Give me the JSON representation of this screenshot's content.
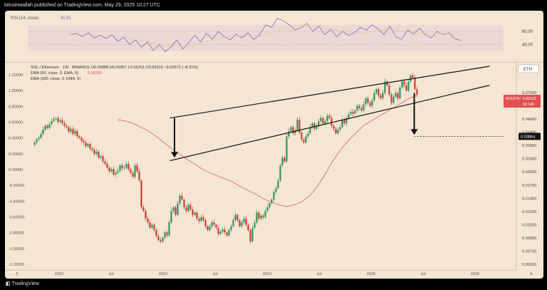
{
  "header": {
    "publisher": "bitcoinwallah published on TradingView.com, May 29, 2025 10:27 UTC"
  },
  "footer": {
    "brand": "TradingView",
    "brand_icon": "tradingview-logo-icon"
  },
  "colors": {
    "bg": "#f5e6d3",
    "up": "#2e8b57",
    "down": "#c0392b",
    "ema50": "#e05050",
    "rsi": "#7a6bc9",
    "rsi_ma": "#e8c56a"
  },
  "chart_data": [
    {
      "type": "line",
      "name_label": "RSI (14, close)",
      "value_label": "45.91",
      "ylim": [
        20,
        85
      ],
      "y_ticks": [
        "60.00",
        "40.00"
      ],
      "band": [
        30,
        70
      ],
      "series": [
        {
          "values": [
            55,
            57,
            52,
            58,
            50,
            54,
            49,
            55,
            45,
            51,
            40,
            47,
            36,
            44,
            31,
            40,
            29,
            37,
            47,
            33,
            43,
            54,
            44,
            57,
            48,
            60,
            52,
            47,
            56,
            50,
            58,
            48,
            55,
            70,
            66,
            80,
            76,
            70,
            62,
            66,
            72,
            60,
            68,
            55,
            63,
            52,
            60,
            54,
            58,
            66,
            62,
            70,
            64,
            55,
            68,
            52,
            48,
            62,
            56,
            65,
            55,
            50,
            60,
            55,
            58,
            49,
            46
          ]
        }
      ]
    },
    {
      "type": "candlestick",
      "legend": [
        {
          "text": "SOL / Ethereum · 1W · BINANCE  O0.06888  H0.06957  L0.06251  C0.06315  −0.00572 (−8.31%)"
        },
        {
          "text": "EMA (50, close, 0, EMA, 5)",
          "value": "0.06283"
        },
        {
          "text": "EMA (200, close, 0, EMA, 5)"
        }
      ],
      "y_ticks_left": [
        "1.20000",
        "1.00000",
        "0.80000",
        "0.60000",
        "0.40000",
        "0.20000",
        "0.00000",
        "-0.20000",
        "-0.40000",
        "-0.60000",
        "-0.80000",
        "-1.00000",
        "-1.20000"
      ],
      "y_ticks_right": [
        "0.07000",
        "0.05000",
        "0.04000",
        "0.03400",
        "0.02800",
        "0.02400",
        "0.02000",
        "0.01700",
        "0.01400",
        "0.01200",
        "0.01000",
        "0.00850",
        "0.00730",
        "0.00620"
      ],
      "x_ticks": [
        "2022",
        "Jul",
        "2023",
        "Jul",
        "2024",
        "Jul",
        "2025",
        "Jul",
        "2026"
      ],
      "x_axis_corners": [
        "Z",
        "A"
      ],
      "currency_badge": "ETH",
      "price_label": [
        "SOLETH",
        "0.06315",
        "3d 14h"
      ],
      "target_label": "0.03864",
      "close": [
        0.3,
        0.34,
        0.36,
        0.41,
        0.47,
        0.52,
        0.49,
        0.54,
        0.58,
        0.61,
        0.62,
        0.57,
        0.59,
        0.55,
        0.52,
        0.5,
        0.44,
        0.48,
        0.41,
        0.45,
        0.38,
        0.36,
        0.32,
        0.3,
        0.25,
        0.28,
        0.22,
        0.2,
        0.15,
        0.18,
        0.1,
        0.12,
        0.05,
        0.02,
        -0.03,
        -0.08,
        -0.05,
        -0.12,
        -0.1,
        -0.07,
        0.0,
        -0.04,
        -0.03,
        0.02,
        -0.05,
        -0.1,
        -0.15,
        0.0,
        -0.08,
        -0.2,
        -0.55,
        -0.6,
        -0.7,
        -0.75,
        -0.82,
        -0.78,
        -0.85,
        -0.93,
        -0.98,
        -1.0,
        -0.95,
        -0.88,
        -0.92,
        -0.75,
        -0.6,
        -0.55,
        -0.65,
        -0.5,
        -0.4,
        -0.45,
        -0.55,
        -0.6,
        -0.52,
        -0.58,
        -0.65,
        -0.62,
        -0.7,
        -0.73,
        -0.68,
        -0.72,
        -0.8,
        -0.85,
        -0.8,
        -0.75,
        -0.78,
        -0.82,
        -0.9,
        -0.87,
        -0.84,
        -0.88,
        -0.92,
        -0.85,
        -0.8,
        -0.72,
        -0.65,
        -0.72,
        -0.8,
        -0.75,
        -0.7,
        -0.78,
        -0.85,
        -1.0,
        -0.82,
        -0.75,
        -0.62,
        -0.7,
        -0.66,
        -0.68,
        -0.6,
        -0.55,
        -0.5,
        -0.45,
        -0.35,
        -0.3,
        -0.2,
        0.0,
        0.1,
        0.05,
        0.38,
        0.45,
        0.5,
        0.42,
        0.46,
        0.6,
        0.43,
        0.34,
        0.3,
        0.38,
        0.42,
        0.5,
        0.55,
        0.48,
        0.52,
        0.58,
        0.62,
        0.55,
        0.58,
        0.65,
        0.62,
        0.52,
        0.48,
        0.42,
        0.47,
        0.5,
        0.6,
        0.55,
        0.62,
        0.67,
        0.7,
        0.68,
        0.72,
        0.78,
        0.75,
        0.72,
        0.8,
        0.88,
        0.82,
        0.78,
        0.85,
        0.95,
        1.0,
        0.92,
        0.88,
        0.95,
        1.1,
        1.05,
        0.93,
        0.82,
        0.9,
        0.95,
        0.88,
        1.02,
        1.1,
        1.05,
        0.98,
        1.1,
        1.18,
        1.15,
        1.0,
        0.93
      ],
      "ema50": [
        0.6,
        0.58,
        0.55,
        0.5,
        0.45,
        0.38,
        0.3,
        0.22,
        0.15,
        0.08,
        0.02,
        -0.05,
        -0.1,
        -0.14,
        -0.18,
        -0.22,
        -0.28,
        -0.33,
        -0.38,
        -0.44,
        -0.48,
        -0.52,
        -0.54,
        -0.52,
        -0.48,
        -0.4,
        -0.28,
        -0.12,
        0.05,
        0.2,
        0.32,
        0.42,
        0.52,
        0.58,
        0.64,
        0.7,
        0.76,
        0.82,
        0.88,
        0.92
      ],
      "channel": {
        "upper": [
          [
            0.29,
            0.62
          ],
          [
            0.97,
            1.3
          ]
        ],
        "lower": [
          [
            0.29,
            0.06
          ],
          [
            0.97,
            1.05
          ]
        ]
      },
      "target_y": 0.38
    }
  ]
}
